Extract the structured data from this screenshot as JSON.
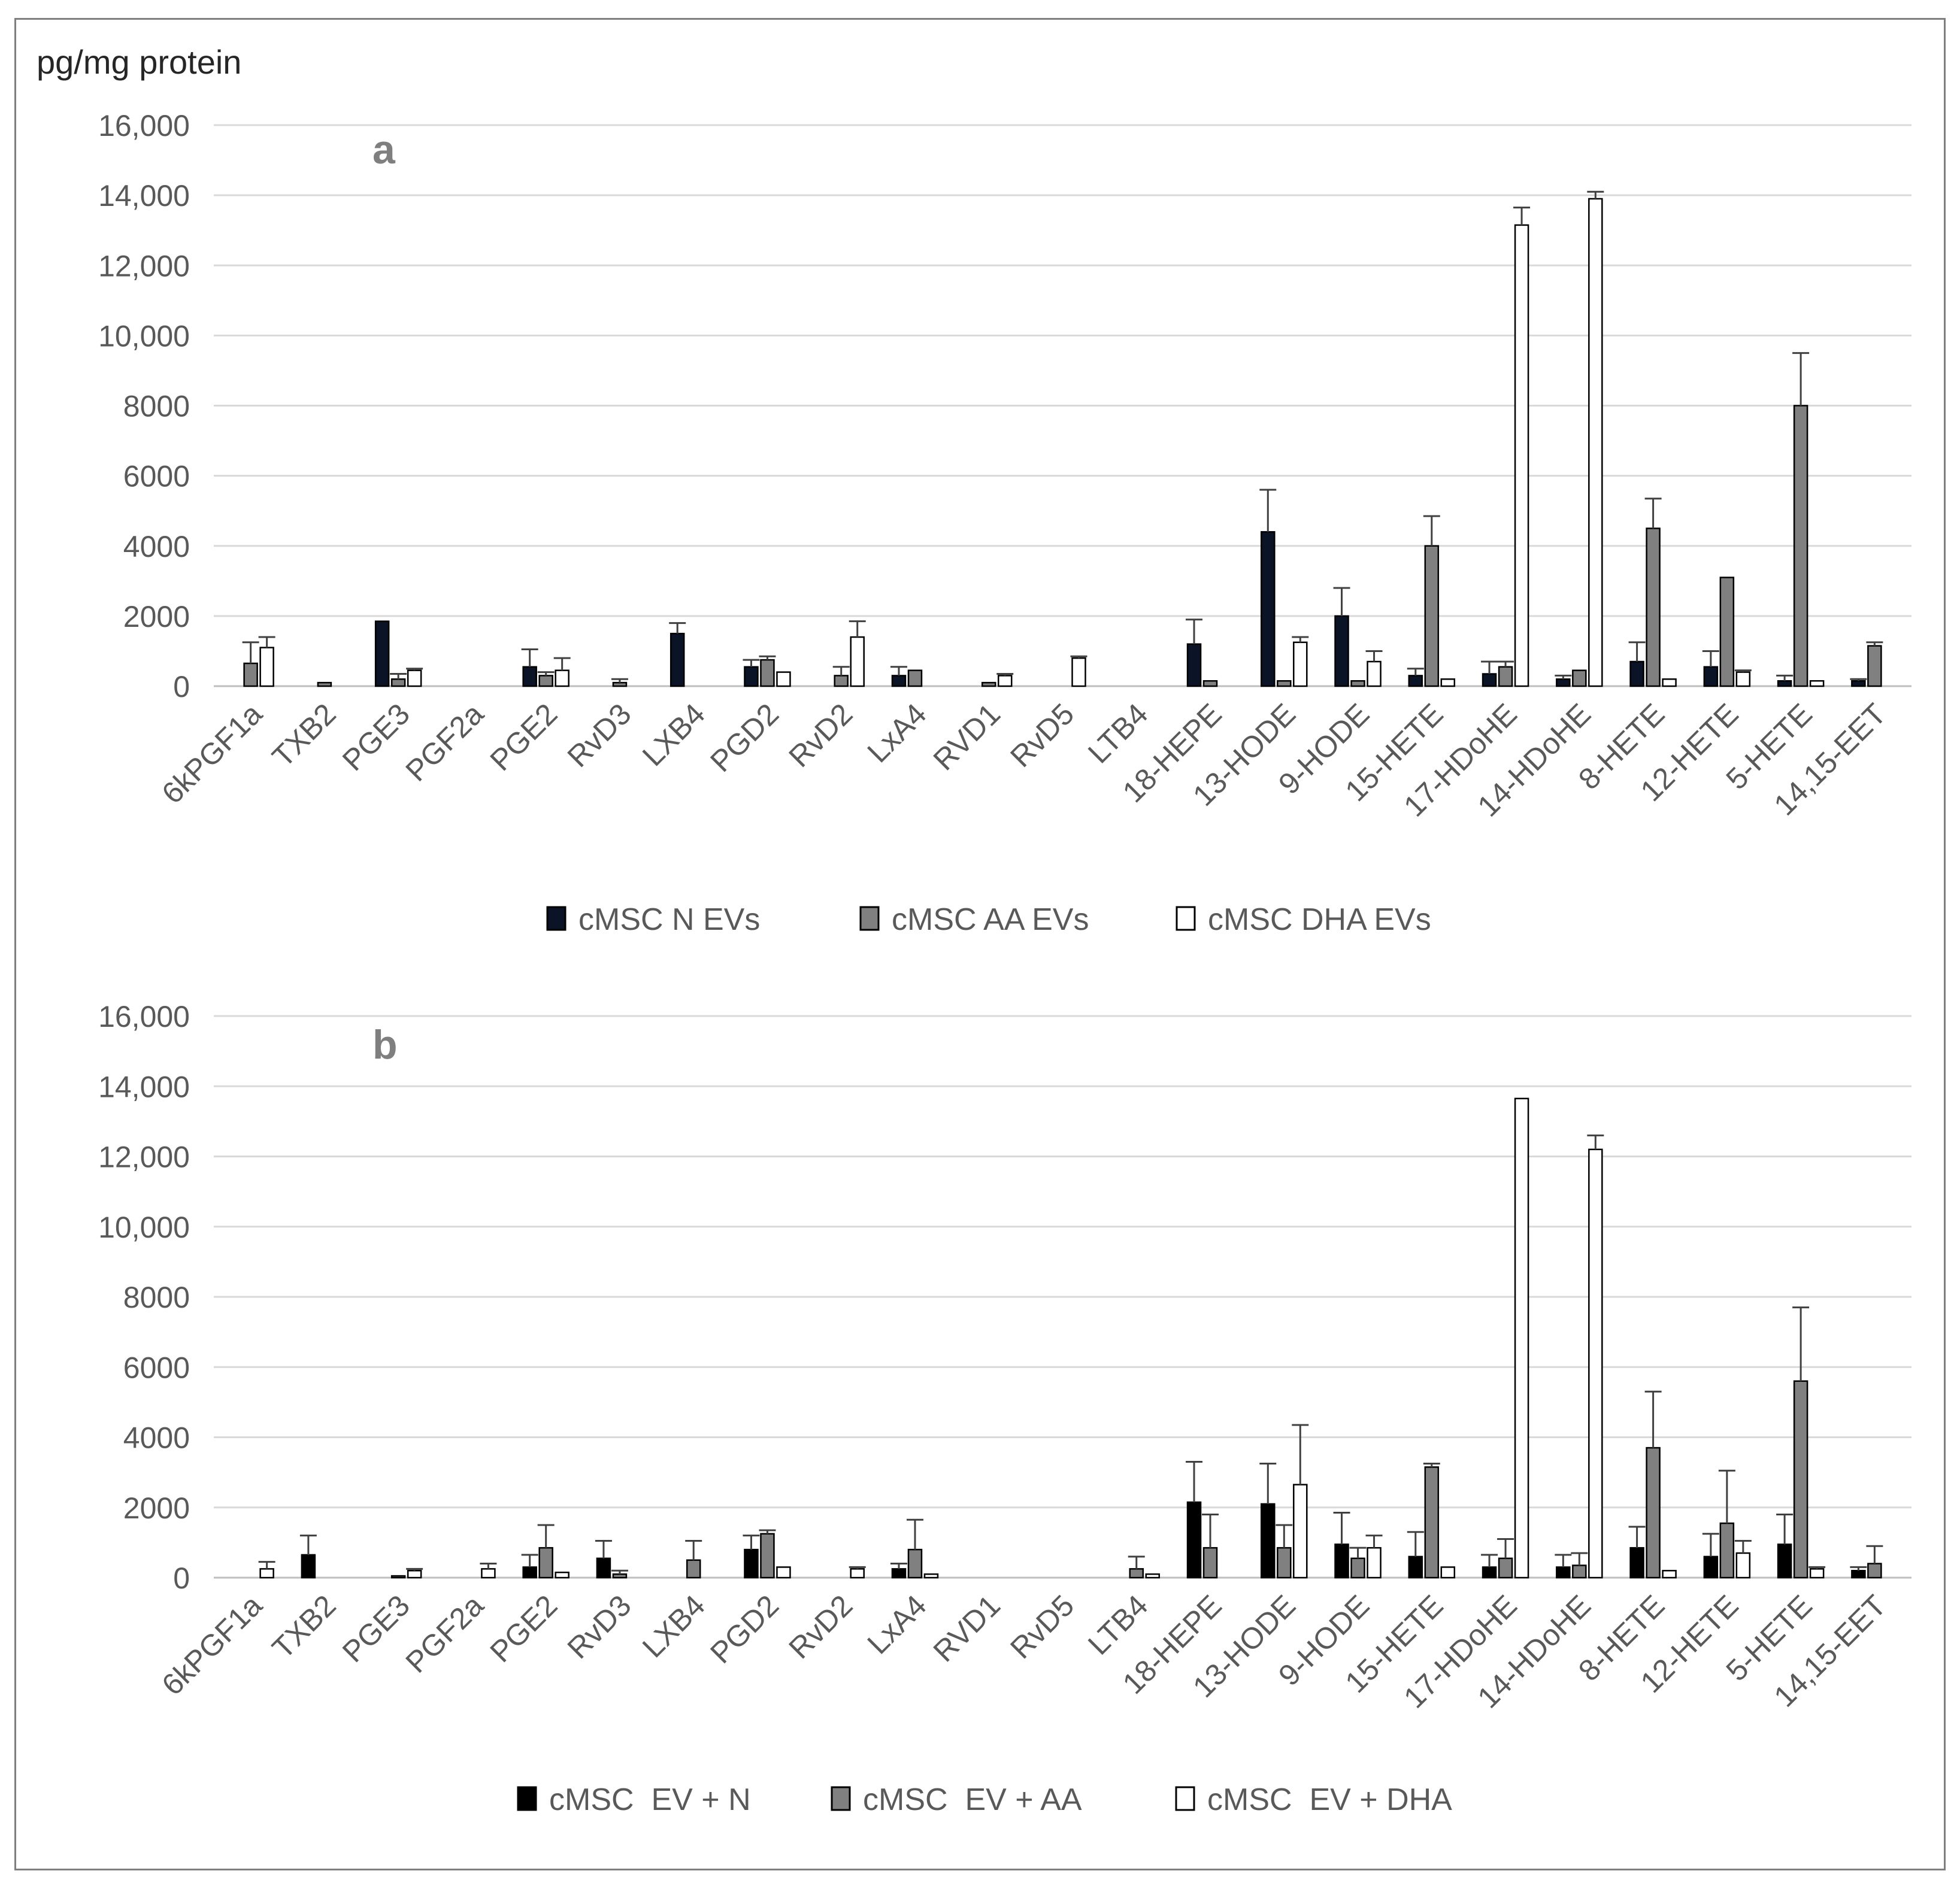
{
  "colors": {
    "n_top": "#0b1426",
    "n_bottom": "#000000",
    "aa": "#808080",
    "dha": "#ffffff",
    "grid": "#d9d9d9",
    "axis": "#bfbfbf",
    "errorbar": "#404040"
  },
  "chart_data": [
    {
      "id": "a",
      "type": "bar",
      "panel_label": "a",
      "ylabel": "pg/mg protein",
      "ylim": [
        0,
        16000
      ],
      "yticks": [
        0,
        2000,
        4000,
        6000,
        8000,
        10000,
        12000,
        14000,
        16000
      ],
      "ytick_labels": [
        "0",
        "2000",
        "4000",
        "6000",
        "8000",
        "10,000",
        "12,000",
        "14,000",
        "16,000"
      ],
      "categories": [
        "6kPGF1a",
        "TXB2",
        "PGE3",
        "PGF2a",
        "PGE2",
        "RvD3",
        "LXB4",
        "PGD2",
        "RvD2",
        "LxA4",
        "RVD1",
        "RvD5",
        "LTB4",
        "18-HEPE",
        "13-HODE",
        "9-HODE",
        "15-HETE",
        "17-HDoHE",
        "14-HDoHE",
        "8-HETE",
        "12-HETE",
        "5-HETE",
        "14,15-EET"
      ],
      "series": [
        {
          "name": "cMSC N EVs",
          "color_key": "n_top",
          "values": [
            0,
            0,
            1850,
            0,
            550,
            0,
            1500,
            550,
            0,
            300,
            0,
            0,
            0,
            1200,
            4400,
            2000,
            300,
            350,
            200,
            700,
            550,
            150,
            150
          ],
          "errors": [
            0,
            0,
            0,
            0,
            500,
            0,
            300,
            200,
            0,
            250,
            0,
            0,
            0,
            700,
            1200,
            800,
            200,
            350,
            100,
            550,
            450,
            150,
            50
          ]
        },
        {
          "name": "cMSC AA EVs",
          "color_key": "aa",
          "values": [
            650,
            100,
            200,
            0,
            300,
            100,
            0,
            750,
            300,
            450,
            100,
            0,
            0,
            150,
            150,
            150,
            4000,
            550,
            450,
            4500,
            3100,
            8000,
            1150
          ],
          "errors": [
            600,
            0,
            150,
            0,
            100,
            100,
            0,
            100,
            250,
            0,
            0,
            0,
            0,
            0,
            0,
            0,
            850,
            150,
            0,
            850,
            0,
            1500,
            100
          ]
        },
        {
          "name": "cMSC DHA EVs",
          "color_key": "dha",
          "values": [
            1100,
            0,
            450,
            0,
            450,
            0,
            0,
            400,
            1400,
            0,
            300,
            800,
            0,
            0,
            1250,
            700,
            200,
            13150,
            13900,
            200,
            400,
            150,
            0
          ],
          "errors": [
            300,
            0,
            50,
            0,
            350,
            0,
            0,
            0,
            450,
            0,
            50,
            50,
            0,
            0,
            150,
            300,
            0,
            500,
            200,
            0,
            50,
            0,
            0
          ]
        }
      ]
    },
    {
      "id": "b",
      "type": "bar",
      "panel_label": "b",
      "ylabel": "",
      "ylim": [
        0,
        16000
      ],
      "yticks": [
        0,
        2000,
        4000,
        6000,
        8000,
        10000,
        12000,
        14000,
        16000
      ],
      "ytick_labels": [
        "0",
        "2000",
        "4000",
        "6000",
        "8000",
        "10,000",
        "12,000",
        "14,000",
        "16,000"
      ],
      "categories": [
        "6kPGF1a",
        "TXB2",
        "PGE3",
        "PGF2a",
        "PGE2",
        "RvD3",
        "LXB4",
        "PGD2",
        "RvD2",
        "LxA4",
        "RVD1",
        "RvD5",
        "LTB4",
        "18-HEPE",
        "13-HODE",
        "9-HODE",
        "15-HETE",
        "17-HDoHE",
        "14-HDoHE",
        "8-HETE",
        "12-HETE",
        "5-HETE",
        "14,15-EET"
      ],
      "series": [
        {
          "name": "cMSC  EV + N",
          "color_key": "n_bottom",
          "values": [
            0,
            650,
            0,
            0,
            300,
            550,
            0,
            800,
            0,
            250,
            0,
            0,
            0,
            2150,
            2100,
            950,
            600,
            300,
            300,
            850,
            600,
            950,
            200
          ],
          "errors": [
            0,
            550,
            0,
            0,
            350,
            500,
            0,
            400,
            0,
            150,
            0,
            0,
            0,
            1150,
            1150,
            900,
            700,
            350,
            350,
            600,
            650,
            850,
            100
          ]
        },
        {
          "name": "cMSC  EV + AA",
          "color_key": "aa",
          "values": [
            0,
            0,
            50,
            0,
            850,
            100,
            500,
            1250,
            0,
            800,
            0,
            0,
            250,
            850,
            850,
            550,
            3150,
            550,
            350,
            3700,
            1550,
            5600,
            400
          ],
          "errors": [
            0,
            0,
            0,
            0,
            650,
            100,
            550,
            100,
            0,
            850,
            0,
            0,
            350,
            950,
            650,
            300,
            100,
            550,
            350,
            1600,
            1500,
            2100,
            500
          ]
        },
        {
          "name": "cMSC  EV + DHA",
          "color_key": "dha",
          "values": [
            250,
            0,
            200,
            250,
            150,
            0,
            0,
            300,
            250,
            100,
            0,
            0,
            100,
            0,
            2650,
            850,
            300,
            13650,
            12200,
            200,
            700,
            250,
            0
          ],
          "errors": [
            200,
            0,
            50,
            150,
            0,
            0,
            0,
            0,
            50,
            0,
            0,
            0,
            0,
            0,
            1700,
            350,
            0,
            0,
            400,
            0,
            350,
            50,
            0
          ]
        }
      ]
    }
  ]
}
